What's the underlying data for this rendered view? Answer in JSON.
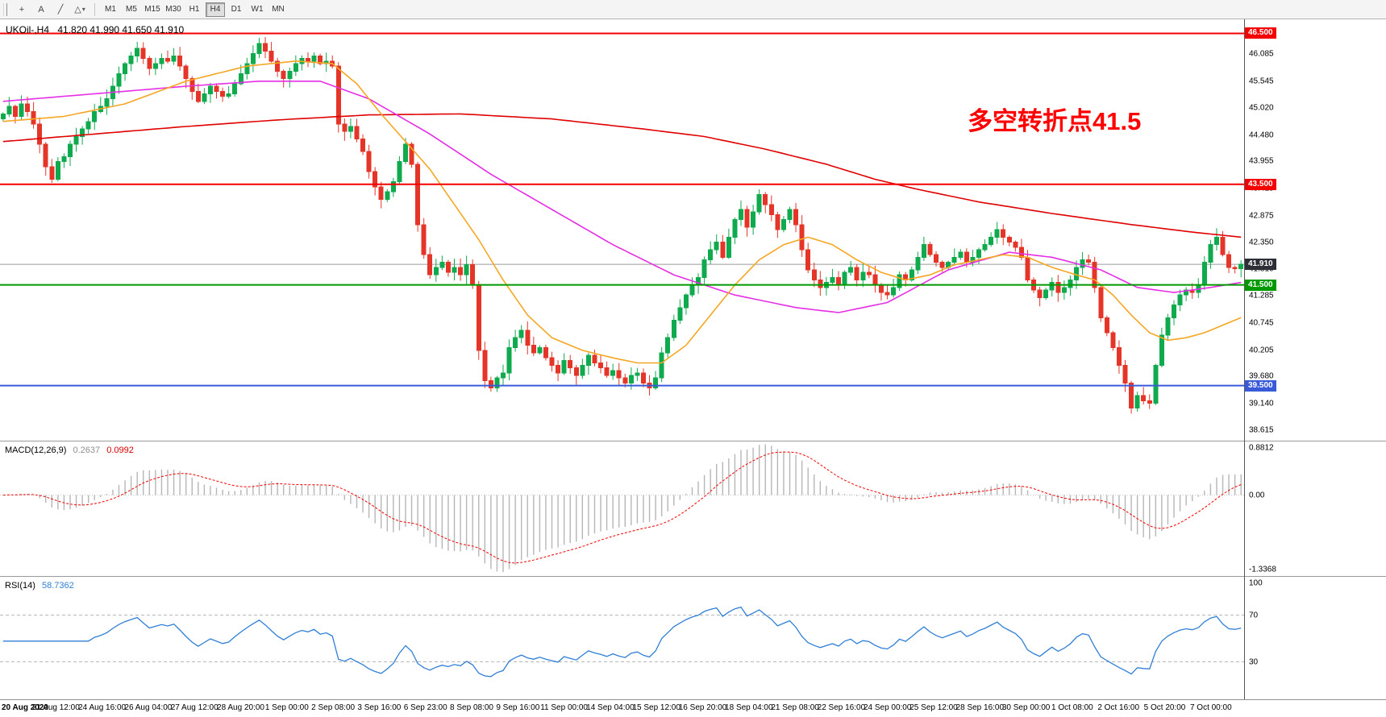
{
  "toolbar": {
    "tools": [
      {
        "name": "crosshair",
        "glyph": "+",
        "dropdown": false
      },
      {
        "name": "text-label",
        "glyph": "A",
        "dropdown": false
      },
      {
        "name": "trendline",
        "glyph": "╱",
        "dropdown": false
      },
      {
        "name": "shapes",
        "glyph": "△",
        "dropdown": true
      }
    ],
    "timeframes": [
      "M1",
      "M5",
      "M15",
      "M30",
      "H1",
      "H4",
      "D1",
      "W1",
      "MN"
    ],
    "active_timeframe": "H4"
  },
  "chart": {
    "symbol_tf": "UKOil-,H4",
    "ohlc": "41.820 41.990 41.650 41.910",
    "annotation": {
      "text": "多空转折点41.5"
    }
  },
  "indicators": {
    "macd": {
      "name": "MACD(12,26,9)",
      "value_main": "0.2637",
      "value_signal": "0.0992",
      "axis_labels": [
        "0.8812",
        "0.00",
        "-1.3368"
      ]
    },
    "rsi": {
      "name": "RSI(14)",
      "value": "58.7362",
      "axis_labels": [
        "100",
        "70",
        "30"
      ],
      "levels": [
        70,
        30
      ]
    }
  },
  "colors": {
    "up": "#0faa4e",
    "down": "#e53528",
    "ma_slow": "#e00000",
    "ma_mid": "#e52ee5",
    "ma_fast": "#f5a623",
    "level_red": "#f40000",
    "level_green": "#009a00",
    "level_blue": "#3a5bd9",
    "macd_bar": "#b6b6b6",
    "macd_signal": "#f40000",
    "rsi_line": "#2f7fd6",
    "rsi_level": "#b8b8b8",
    "current_line": "#9a9a9a",
    "current_badge_bg": "#2e2e38",
    "annotation": "#ff0000"
  },
  "chart_data": {
    "type": "candlestick",
    "symbol": "UKOil-",
    "timeframe": "H4",
    "price_range": {
      "min": 38.42,
      "max": 46.78
    },
    "first_open": 44.8,
    "last_candle": {
      "o": 41.82,
      "h": 41.99,
      "l": 41.65,
      "c": 41.91
    },
    "closes": [
      44.9,
      45.05,
      44.85,
      45.1,
      44.95,
      44.7,
      44.3,
      43.85,
      43.6,
      43.95,
      44.05,
      44.3,
      44.45,
      44.6,
      44.75,
      44.95,
      45.05,
      45.2,
      45.45,
      45.7,
      45.9,
      46.05,
      46.2,
      46.0,
      45.8,
      45.9,
      46.0,
      45.95,
      46.05,
      45.85,
      45.6,
      45.35,
      45.15,
      45.3,
      45.45,
      45.35,
      45.25,
      45.3,
      45.5,
      45.7,
      45.9,
      46.1,
      46.3,
      46.15,
      45.95,
      45.75,
      45.6,
      45.75,
      45.9,
      46.0,
      45.95,
      46.05,
      45.9,
      45.95,
      45.85,
      44.7,
      44.55,
      44.65,
      44.4,
      44.15,
      43.75,
      43.45,
      43.2,
      43.35,
      43.55,
      43.95,
      44.3,
      43.9,
      42.7,
      42.1,
      41.7,
      41.85,
      41.95,
      41.75,
      41.85,
      41.7,
      41.9,
      41.5,
      40.2,
      39.6,
      39.45,
      39.65,
      39.75,
      40.25,
      40.45,
      40.6,
      40.3,
      40.15,
      40.25,
      40.05,
      39.9,
      39.75,
      40.0,
      39.85,
      39.7,
      39.9,
      40.1,
      39.95,
      39.85,
      39.7,
      39.8,
      39.65,
      39.55,
      39.7,
      39.75,
      39.55,
      39.45,
      39.65,
      40.15,
      40.45,
      40.8,
      41.05,
      41.3,
      41.5,
      41.65,
      42.0,
      42.2,
      42.35,
      42.05,
      42.45,
      42.8,
      43.0,
      42.65,
      42.95,
      43.3,
      43.1,
      42.9,
      42.6,
      42.8,
      43.0,
      42.7,
      42.2,
      41.8,
      41.6,
      41.45,
      41.55,
      41.65,
      41.5,
      41.75,
      41.85,
      41.6,
      41.75,
      41.7,
      41.5,
      41.35,
      41.3,
      41.45,
      41.7,
      41.6,
      41.8,
      42.05,
      42.3,
      42.1,
      41.95,
      41.85,
      41.95,
      42.05,
      42.15,
      41.95,
      42.05,
      42.2,
      42.3,
      42.45,
      42.6,
      42.45,
      42.35,
      42.25,
      42.05,
      41.6,
      41.4,
      41.25,
      41.4,
      41.55,
      41.35,
      41.45,
      41.6,
      41.85,
      42.0,
      41.95,
      41.45,
      40.85,
      40.55,
      40.25,
      39.9,
      39.55,
      39.05,
      39.3,
      39.2,
      39.15,
      39.9,
      40.5,
      40.85,
      41.1,
      41.3,
      41.4,
      41.35,
      41.5,
      41.95,
      42.3,
      42.45,
      42.1,
      41.85,
      41.82,
      41.91
    ],
    "ma_anchors": {
      "slow_red": [
        [
          0,
          44.35
        ],
        [
          15,
          44.5
        ],
        [
          30,
          44.65
        ],
        [
          45,
          44.78
        ],
        [
          60,
          44.88
        ],
        [
          75,
          44.9
        ],
        [
          90,
          44.8
        ],
        [
          105,
          44.6
        ],
        [
          115,
          44.45
        ],
        [
          125,
          44.2
        ],
        [
          135,
          43.9
        ],
        [
          143,
          43.6
        ],
        [
          150,
          43.4
        ],
        [
          160,
          43.15
        ],
        [
          172,
          42.92
        ],
        [
          185,
          42.7
        ],
        [
          195,
          42.55
        ],
        [
          203,
          42.45
        ]
      ],
      "mid_magenta": [
        [
          0,
          45.15
        ],
        [
          15,
          45.3
        ],
        [
          30,
          45.45
        ],
        [
          42,
          45.55
        ],
        [
          52,
          45.55
        ],
        [
          60,
          45.2
        ],
        [
          70,
          44.5
        ],
        [
          80,
          43.7
        ],
        [
          90,
          43.0
        ],
        [
          100,
          42.3
        ],
        [
          110,
          41.7
        ],
        [
          120,
          41.3
        ],
        [
          130,
          41.05
        ],
        [
          137,
          40.95
        ],
        [
          145,
          41.15
        ],
        [
          155,
          41.8
        ],
        [
          165,
          42.15
        ],
        [
          172,
          42.05
        ],
        [
          180,
          41.8
        ],
        [
          186,
          41.45
        ],
        [
          192,
          41.35
        ],
        [
          198,
          41.45
        ],
        [
          203,
          41.55
        ]
      ],
      "fast_orange": [
        [
          0,
          44.75
        ],
        [
          10,
          44.85
        ],
        [
          20,
          45.1
        ],
        [
          30,
          45.55
        ],
        [
          40,
          45.85
        ],
        [
          48,
          45.95
        ],
        [
          54,
          45.9
        ],
        [
          58,
          45.5
        ],
        [
          62,
          44.9
        ],
        [
          66,
          44.35
        ],
        [
          70,
          43.8
        ],
        [
          74,
          43.1
        ],
        [
          78,
          42.4
        ],
        [
          82,
          41.6
        ],
        [
          86,
          40.9
        ],
        [
          90,
          40.45
        ],
        [
          95,
          40.2
        ],
        [
          100,
          40.05
        ],
        [
          104,
          39.95
        ],
        [
          108,
          39.95
        ],
        [
          112,
          40.3
        ],
        [
          116,
          40.9
        ],
        [
          120,
          41.5
        ],
        [
          124,
          42.0
        ],
        [
          128,
          42.3
        ],
        [
          132,
          42.45
        ],
        [
          136,
          42.3
        ],
        [
          140,
          42.0
        ],
        [
          144,
          41.75
        ],
        [
          148,
          41.6
        ],
        [
          152,
          41.7
        ],
        [
          156,
          41.9
        ],
        [
          160,
          42.0
        ],
        [
          164,
          42.1
        ],
        [
          168,
          42.05
        ],
        [
          172,
          41.85
        ],
        [
          176,
          41.7
        ],
        [
          179,
          41.6
        ],
        [
          182,
          41.3
        ],
        [
          185,
          40.9
        ],
        [
          188,
          40.55
        ],
        [
          191,
          40.4
        ],
        [
          194,
          40.45
        ],
        [
          197,
          40.55
        ],
        [
          200,
          40.7
        ],
        [
          203,
          40.85
        ]
      ]
    },
    "levels": [
      {
        "price": 46.5,
        "label": "46.500",
        "color": "#f40000"
      },
      {
        "price": 43.5,
        "label": "43.500",
        "color": "#f40000"
      },
      {
        "price": 41.5,
        "label": "41.500",
        "color": "#009a00"
      },
      {
        "price": 39.5,
        "label": "39.500",
        "color": "#3a5bd9"
      }
    ],
    "current_price": {
      "value": 41.91,
      "label": "41.910"
    },
    "price_tick_labels": [
      "46.085",
      "45.545",
      "45.020",
      "44.480",
      "43.955",
      "43.415",
      "42.875",
      "42.350",
      "41.810",
      "41.285",
      "40.745",
      "40.205",
      "39.680",
      "39.140",
      "38.615"
    ],
    "macd_range": {
      "min": -1.3368,
      "max": 0.8812
    },
    "macd_params": [
      12,
      26,
      9
    ],
    "rsi_period": 14,
    "time_labels": [
      "20 Aug 2020",
      "21 Aug 12:00",
      "24 Aug 16:00",
      "26 Aug 04:00",
      "27 Aug 12:00",
      "28 Aug 20:00",
      "1 Sep 00:00",
      "2 Sep 08:00",
      "3 Sep 16:00",
      "6 Sep 23:00",
      "8 Sep 08:00",
      "9 Sep 16:00",
      "11 Sep 00:00",
      "14 Sep 04:00",
      "15 Sep 12:00",
      "16 Sep 20:00",
      "18 Sep 04:00",
      "21 Sep 08:00",
      "22 Sep 16:00",
      "24 Sep 00:00",
      "25 Sep 12:00",
      "28 Sep 16:00",
      "30 Sep 00:00",
      "1 Oct 08:00",
      "2 Oct 16:00",
      "5 Oct 20:00",
      "7 Oct 00:00"
    ]
  }
}
